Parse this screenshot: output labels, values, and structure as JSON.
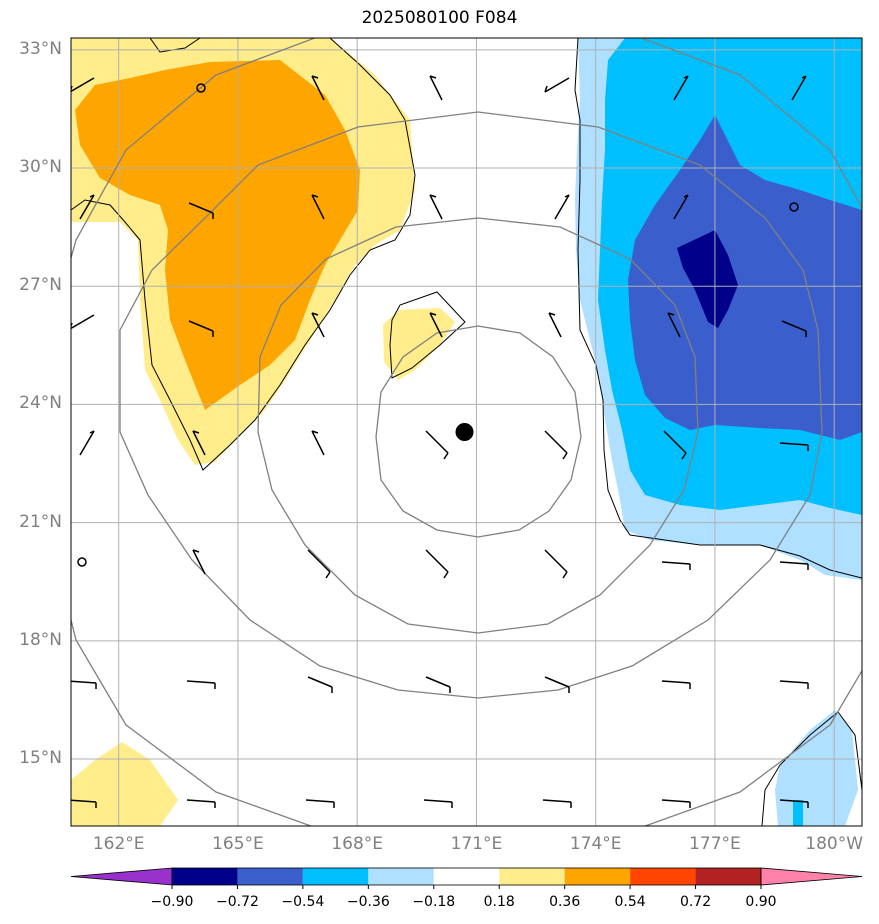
{
  "title": "2025080100 F084",
  "lat_labels": [
    "33°N",
    "30°N",
    "27°N",
    "24°N",
    "21°N",
    "18°N",
    "15°N"
  ],
  "lat_values": [
    33,
    30,
    27,
    24,
    21,
    18,
    15
  ],
  "lon_labels": [
    "162°E",
    "165°E",
    "168°E",
    "171°E",
    "174°E",
    "177°E",
    "180°W"
  ],
  "lon_values": [
    162,
    165,
    168,
    171,
    174,
    177,
    180
  ],
  "extent": {
    "lon": [
      160.8,
      180.7
    ],
    "lat": [
      13.3,
      33.3
    ]
  },
  "storm_center": {
    "lon": 170.7,
    "lat": 23.3
  },
  "colorbar": {
    "levels": [
      "−0.90",
      "−0.72",
      "−0.54",
      "−0.36",
      "−0.18",
      "0.18",
      "0.36",
      "0.54",
      "0.72",
      "0.90"
    ],
    "colors": [
      "#9932cc",
      "#00008b",
      "#3a5fcd",
      "#00bfff",
      "#b0e0ff",
      "#ffffff",
      "#ffec8b",
      "#ffa500",
      "#ff4500",
      "#b22222",
      "#ff82ab"
    ]
  },
  "colors": {
    "grid": "#b0b0b0",
    "range_ring": "#808080",
    "light_yellow": "#ffec8b",
    "orange": "#ffa500",
    "light_blue": "#b0e0ff",
    "sky_blue": "#00bfff",
    "royal_blue": "#3a5fcd",
    "navy": "#00008b"
  }
}
